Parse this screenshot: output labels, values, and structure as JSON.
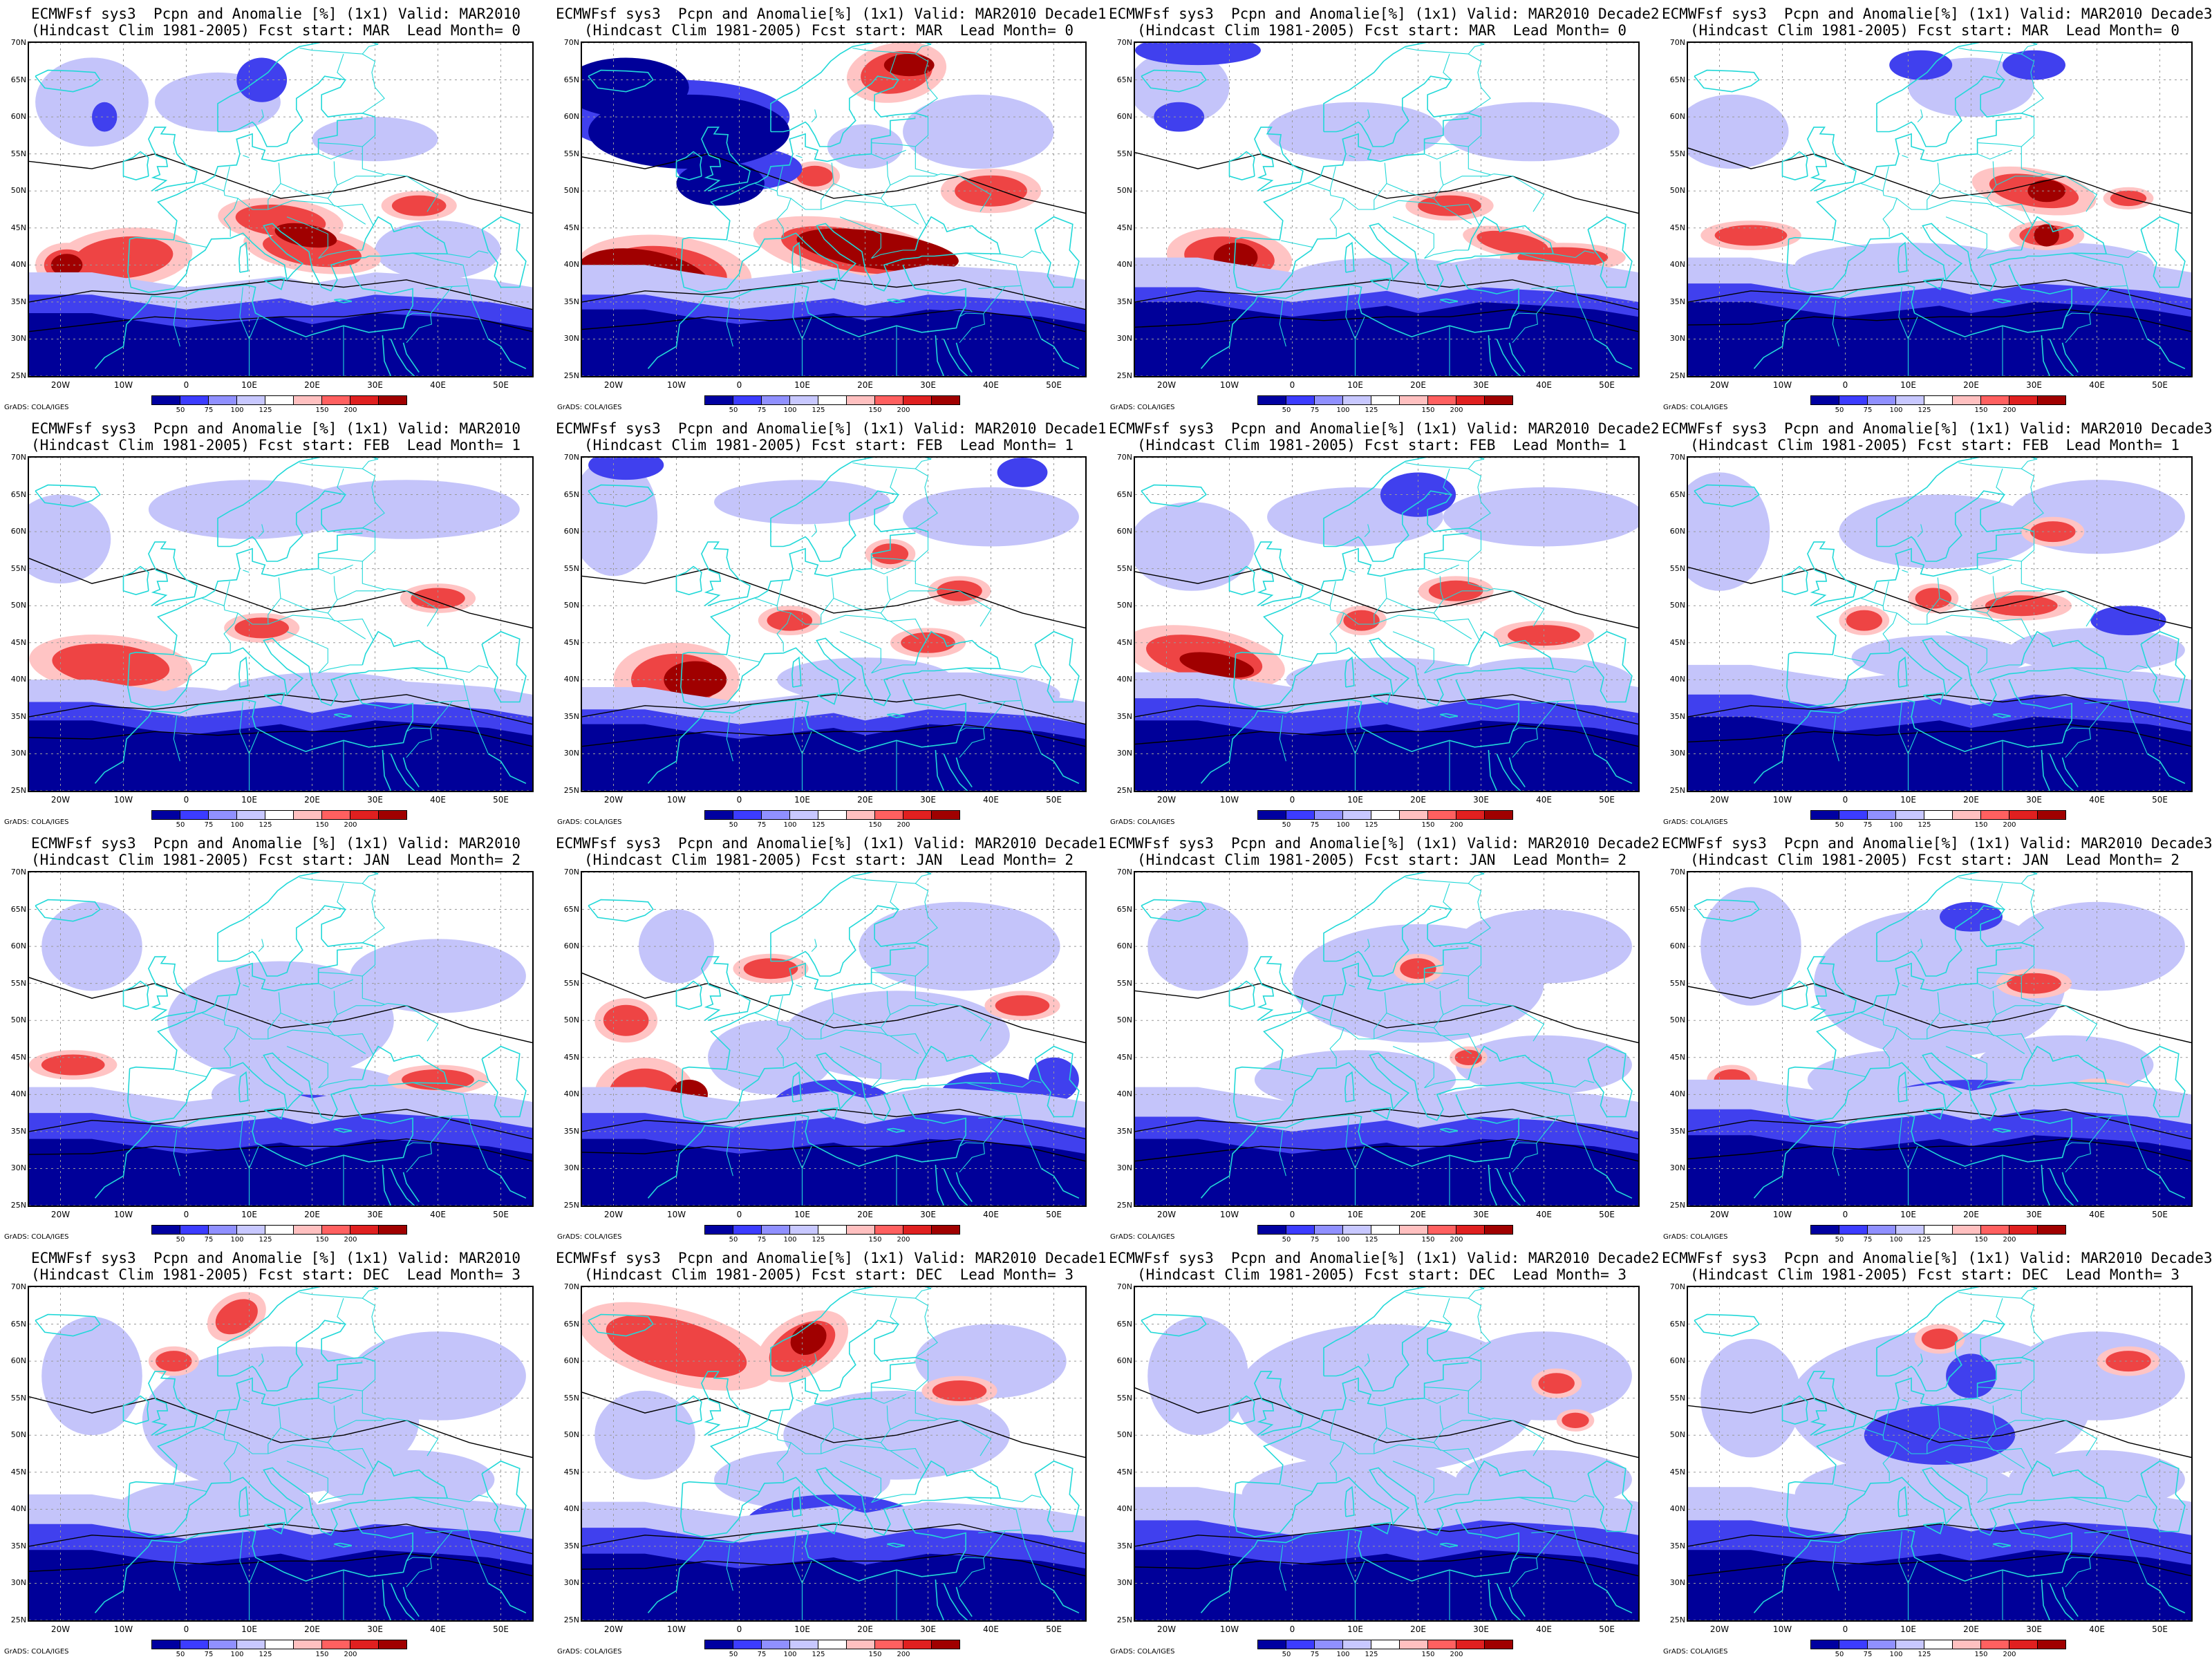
{
  "title_line1": [
    "ECMWFsf sys3  Pcpn and Anomalie [%] (1x1) Valid: MAR2010",
    "ECMWFsf sys3  Pcpn and Anomalie[%] (1x1) Valid: MAR2010 Decade1",
    "ECMWFsf sys3  Pcpn and Anomalie[%] (1x1) Valid: MAR2010 Decade2",
    "ECMWFsf sys3  Pcpn and Anomalie[%] (1x1) Valid: MAR2010 Decade3"
  ],
  "title_line2_by_row": [
    "(Hindcast Clim 1981-2005) Fcst start: MAR  Lead Month= 0",
    "(Hindcast Clim 1981-2005) Fcst start: FEB  Lead Month= 1",
    "(Hindcast Clim 1981-2005) Fcst start: JAN  Lead Month= 2",
    "(Hindcast Clim 1981-2005) Fcst start: DEC  Lead Month= 3"
  ],
  "lat_labels": [
    "70N",
    "65N",
    "60N",
    "55N",
    "50N",
    "45N",
    "40N",
    "35N",
    "30N",
    "25N"
  ],
  "lon_labels": [
    "20W",
    "10W",
    "0",
    "10E",
    "20E",
    "30E",
    "40E",
    "50E"
  ],
  "colorbar_labels": [
    "50",
    "75",
    "100",
    "125",
    "150",
    "200"
  ],
  "colorbar_colors": [
    "#0000a0",
    "#3c3cff",
    "#9090ff",
    "#c8c8ff",
    "#ffffff",
    "#ffc0c0",
    "#ff6060",
    "#e02020",
    "#a00000"
  ],
  "credit": "GrADS: COLA/IGES",
  "colors": {
    "deep_blue": "#000099",
    "mid_blue": "#4040ee",
    "light_blue": "#c4c4fa",
    "light_red": "#ffc4c4",
    "mid_red": "#ee4444",
    "dark_red": "#a00000",
    "coast": "#22d8d8",
    "contour": "#000000"
  }
}
